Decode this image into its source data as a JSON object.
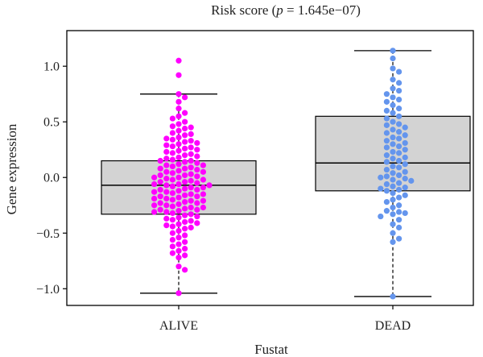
{
  "chart_data": {
    "type": "box-swarm",
    "title_main": "Risk score (",
    "title_p": "p",
    "title_rest": " = 1.645e−07)",
    "xlabel": "Fustat",
    "ylabel": "Gene expression",
    "ylim": [
      -1.15,
      1.32
    ],
    "yticks": [
      {
        "value": 1.0,
        "label": "1.0"
      },
      {
        "value": 0.5,
        "label": "0.5"
      },
      {
        "value": 0.0,
        "label": "0.0"
      },
      {
        "value": -0.5,
        "label": "−0.5"
      },
      {
        "value": -1.0,
        "label": "−1.0"
      }
    ],
    "grid": false,
    "groups": [
      {
        "label": "ALIVE",
        "color": "#ff00ff",
        "box": {
          "min": -1.04,
          "q1": -0.33,
          "median": -0.07,
          "q3": 0.15,
          "max": 0.75
        },
        "points": [
          1.05,
          0.92,
          0.75,
          0.72,
          0.68,
          0.62,
          0.58,
          0.55,
          0.53,
          0.5,
          0.48,
          0.46,
          0.45,
          0.44,
          0.42,
          0.4,
          0.39,
          0.38,
          0.36,
          0.35,
          0.34,
          0.33,
          0.32,
          0.31,
          0.3,
          0.29,
          0.28,
          0.27,
          0.26,
          0.25,
          0.24,
          0.23,
          0.22,
          0.21,
          0.2,
          0.19,
          0.18,
          0.17,
          0.16,
          0.15,
          0.15,
          0.14,
          0.13,
          0.12,
          0.11,
          0.11,
          0.1,
          0.09,
          0.08,
          0.08,
          0.07,
          0.06,
          0.05,
          0.05,
          0.04,
          0.03,
          0.02,
          0.02,
          0.01,
          0.0,
          0.0,
          -0.01,
          -0.02,
          -0.02,
          -0.03,
          -0.04,
          -0.04,
          -0.05,
          -0.06,
          -0.06,
          -0.07,
          -0.07,
          -0.08,
          -0.09,
          -0.09,
          -0.1,
          -0.11,
          -0.11,
          -0.12,
          -0.13,
          -0.13,
          -0.14,
          -0.15,
          -0.15,
          -0.16,
          -0.17,
          -0.17,
          -0.18,
          -0.19,
          -0.19,
          -0.2,
          -0.21,
          -0.21,
          -0.22,
          -0.23,
          -0.23,
          -0.24,
          -0.25,
          -0.25,
          -0.26,
          -0.27,
          -0.27,
          -0.28,
          -0.29,
          -0.29,
          -0.3,
          -0.31,
          -0.31,
          -0.32,
          -0.33,
          -0.34,
          -0.35,
          -0.36,
          -0.37,
          -0.38,
          -0.39,
          -0.4,
          -0.41,
          -0.42,
          -0.43,
          -0.44,
          -0.45,
          -0.46,
          -0.48,
          -0.5,
          -0.52,
          -0.54,
          -0.56,
          -0.58,
          -0.6,
          -0.62,
          -0.64,
          -0.66,
          -0.68,
          -0.7,
          -0.72,
          -0.8,
          -0.83,
          -1.04
        ]
      },
      {
        "label": "DEAD",
        "color": "#6495ed",
        "box": {
          "min": -1.07,
          "q1": -0.12,
          "median": 0.13,
          "q3": 0.55,
          "max": 1.14
        },
        "points": [
          1.14,
          1.07,
          0.98,
          0.95,
          0.88,
          0.85,
          0.8,
          0.78,
          0.75,
          0.72,
          0.7,
          0.68,
          0.65,
          0.62,
          0.6,
          0.58,
          0.55,
          0.53,
          0.5,
          0.48,
          0.47,
          0.45,
          0.43,
          0.41,
          0.4,
          0.38,
          0.36,
          0.35,
          0.33,
          0.31,
          0.3,
          0.28,
          0.27,
          0.25,
          0.23,
          0.22,
          0.2,
          0.18,
          0.17,
          0.15,
          0.14,
          0.12,
          0.1,
          0.09,
          0.07,
          0.05,
          0.04,
          0.02,
          0.01,
          0.0,
          -0.01,
          -0.02,
          -0.03,
          -0.05,
          -0.06,
          -0.08,
          -0.09,
          -0.1,
          -0.11,
          -0.12,
          -0.14,
          -0.16,
          -0.18,
          -0.2,
          -0.22,
          -0.25,
          -0.27,
          -0.3,
          -0.31,
          -0.32,
          -0.33,
          -0.35,
          -0.38,
          -0.42,
          -0.45,
          -0.5,
          -0.55,
          -0.58,
          -1.07
        ]
      }
    ]
  }
}
